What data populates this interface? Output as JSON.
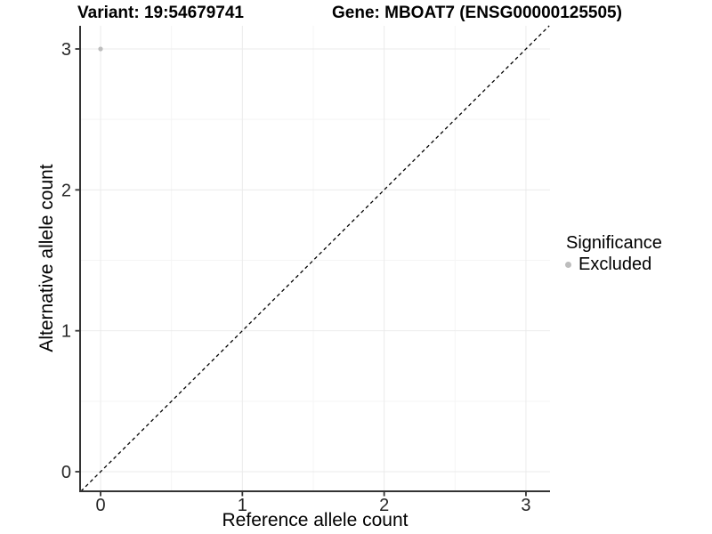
{
  "chart_data": {
    "type": "scatter",
    "title_left": "Variant: 19:54679741",
    "title_right": "Gene: MBOAT7 (ENSG00000125505)",
    "xlabel": "Reference allele count",
    "ylabel": "Alternative allele count",
    "x_ticks": [
      "0",
      "1",
      "2",
      "3"
    ],
    "x_tick_values": [
      0,
      1,
      2,
      3
    ],
    "y_ticks": [
      "0",
      "1",
      "2",
      "3"
    ],
    "y_tick_values": [
      0,
      1,
      2,
      3
    ],
    "x_minor_tick_values": [
      0.5,
      1.5,
      2.5
    ],
    "y_minor_tick_values": [
      0.5,
      1.5,
      2.5
    ],
    "xlim": [
      -0.1444,
      3.1697
    ],
    "ylim": [
      -0.139,
      3.1643
    ],
    "grid": true,
    "series": [
      {
        "name": "Excluded",
        "points": [
          {
            "x": 0,
            "y": 3
          }
        ],
        "color": "#bdbdbd"
      }
    ],
    "reference_line": {
      "kind": "identity",
      "slope": 1,
      "intercept": 0,
      "style": "dashed",
      "color": "#000000"
    },
    "legend": {
      "title": "Significance",
      "position": "right",
      "entries": [
        {
          "label": "Excluded",
          "color": "#bdbdbd"
        }
      ]
    },
    "colors": {
      "point": "#bdbdbd",
      "grid_major": "#ebebeb",
      "grid_minor": "#f5f5f5",
      "axis_line": "#333333",
      "tick_text": "#262626",
      "background": "#ffffff"
    }
  }
}
